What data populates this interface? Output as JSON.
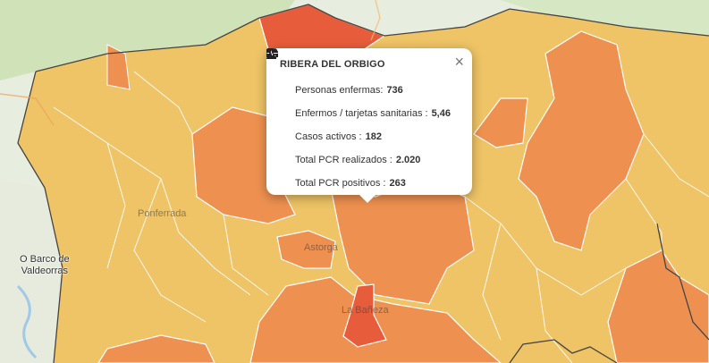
{
  "places": {
    "barco": "O Barco de\nValdeorras",
    "ponferrada": "Ponferrada",
    "astorga": "Astorga",
    "baneza": "La Bañeza"
  },
  "popup": {
    "title": "RIBERA DEL ORBIGO",
    "close": "×",
    "rows": [
      {
        "icon": "bed-icon",
        "label": "Personas enfermas: ",
        "value": "736"
      },
      {
        "icon": "percent-icon",
        "label": "Enfermos / tarjetas sanitarias : ",
        "value": "5,46"
      },
      {
        "icon": "heart-pulse-icon",
        "label": "Casos activos : ",
        "value": "182"
      },
      {
        "icon": "flask-icon",
        "label": "Total PCR realizados : ",
        "value": "2.020"
      },
      {
        "icon": "flask-icon",
        "label": "Total PCR positivos : ",
        "value": "263"
      }
    ]
  },
  "colors": {
    "low": "#efc466",
    "mid": "#ee9150",
    "high": "#e75d3b",
    "border": "#ffffff",
    "outside": "#d9e6c8"
  }
}
